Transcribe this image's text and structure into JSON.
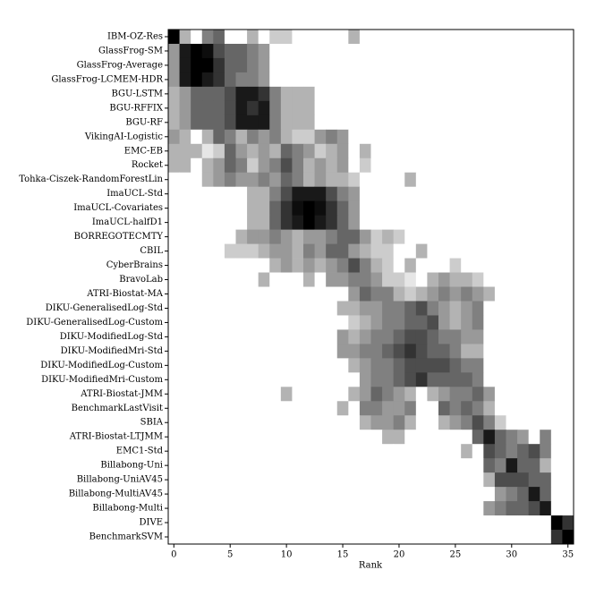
{
  "chart_data": {
    "type": "heatmap",
    "xlabel": "Rank",
    "xlim": [
      -0.5,
      35.5
    ],
    "xticks": [
      0,
      5,
      10,
      15,
      20,
      25,
      30,
      35
    ],
    "colormap": "gray_r",
    "rows": [
      "IBM-OZ-Res",
      "GlassFrog-SM",
      "GlassFrog-Average",
      "GlassFrog-LCMEM-HDR",
      "BGU-LSTM",
      "BGU-RFFIX",
      "BGU-RF",
      "VikingAI-Logistic",
      "EMC-EB",
      "Rocket",
      "Tohka-Ciszek-RandomForestLin",
      "ImaUCL-Std",
      "ImaUCL-Covariates",
      "ImaUCL-halfD1",
      "BORREGOTECMTY",
      "CBIL",
      "CyberBrains",
      "BravoLab",
      "ATRI-Biostat-MA",
      "DIKU-GeneralisedLog-Std",
      "DIKU-GeneralisedLog-Custom",
      "DIKU-ModifiedLog-Std",
      "DIKU-ModifiedMri-Std",
      "DIKU-ModifiedLog-Custom",
      "DIKU-ModifiedMri-Custom",
      "ATRI-Biostat-JMM",
      "BenchmarkLastVisit",
      "SBIA",
      "ATRI-Biostat-LTJMM",
      "EMC1-Std",
      "Billabong-Uni",
      "Billabong-UniAV45",
      "Billabong-MultiAV45",
      "Billabong-Multi",
      "DIVE",
      "BenchmarkSVM"
    ],
    "values": [
      [
        1,
        0.3,
        0,
        0.5,
        0.6,
        0,
        0,
        0.3,
        0,
        0.2,
        0.2,
        0,
        0,
        0,
        0,
        0,
        0.3,
        0,
        0,
        0,
        0,
        0,
        0,
        0,
        0,
        0,
        0,
        0,
        0,
        0,
        0,
        0,
        0,
        0,
        0,
        0
      ],
      [
        0.4,
        0.9,
        1,
        0.95,
        0.7,
        0.6,
        0.6,
        0.5,
        0.4,
        0,
        0,
        0,
        0,
        0,
        0,
        0,
        0,
        0,
        0,
        0,
        0,
        0,
        0,
        0,
        0,
        0,
        0,
        0,
        0,
        0,
        0,
        0,
        0,
        0,
        0,
        0
      ],
      [
        0.4,
        0.9,
        1,
        1,
        0.8,
        0.6,
        0.6,
        0.5,
        0.4,
        0,
        0,
        0,
        0,
        0,
        0,
        0,
        0,
        0,
        0,
        0,
        0,
        0,
        0,
        0,
        0,
        0,
        0,
        0,
        0,
        0,
        0,
        0,
        0,
        0,
        0,
        0
      ],
      [
        0.4,
        0.9,
        1,
        0.9,
        0.8,
        0.6,
        0.5,
        0.5,
        0.4,
        0,
        0,
        0,
        0,
        0,
        0,
        0,
        0,
        0,
        0,
        0,
        0,
        0,
        0,
        0,
        0,
        0,
        0,
        0,
        0,
        0,
        0,
        0,
        0,
        0,
        0,
        0
      ],
      [
        0.3,
        0.4,
        0.6,
        0.6,
        0.6,
        0.7,
        0.9,
        0.9,
        0.8,
        0.5,
        0.3,
        0.3,
        0.3,
        0,
        0,
        0,
        0,
        0,
        0,
        0,
        0,
        0,
        0,
        0,
        0,
        0,
        0,
        0,
        0,
        0,
        0,
        0,
        0,
        0,
        0,
        0
      ],
      [
        0.3,
        0.4,
        0.6,
        0.6,
        0.6,
        0.7,
        0.9,
        0.8,
        0.9,
        0.5,
        0.3,
        0.3,
        0.3,
        0,
        0,
        0,
        0,
        0,
        0,
        0,
        0,
        0,
        0,
        0,
        0,
        0,
        0,
        0,
        0,
        0,
        0,
        0,
        0,
        0,
        0,
        0
      ],
      [
        0.3,
        0.4,
        0.6,
        0.6,
        0.6,
        0.7,
        0.9,
        0.9,
        0.9,
        0.5,
        0.3,
        0.3,
        0.3,
        0,
        0,
        0,
        0,
        0,
        0,
        0,
        0,
        0,
        0,
        0,
        0,
        0,
        0,
        0,
        0,
        0,
        0,
        0,
        0,
        0,
        0,
        0
      ],
      [
        0.4,
        0.3,
        0,
        0.3,
        0.6,
        0.5,
        0.3,
        0.5,
        0.4,
        0.5,
        0.3,
        0.2,
        0.2,
        0.4,
        0.5,
        0.4,
        0,
        0,
        0,
        0,
        0,
        0,
        0,
        0,
        0,
        0,
        0,
        0,
        0,
        0,
        0,
        0,
        0,
        0,
        0,
        0
      ],
      [
        0.3,
        0.3,
        0.3,
        0.1,
        0.2,
        0.6,
        0.4,
        0.3,
        0.4,
        0.3,
        0.6,
        0.5,
        0.4,
        0.2,
        0.3,
        0.4,
        0,
        0.3,
        0,
        0,
        0,
        0,
        0,
        0,
        0,
        0,
        0,
        0,
        0,
        0,
        0,
        0,
        0,
        0,
        0,
        0
      ],
      [
        0.3,
        0.3,
        0,
        0.3,
        0.4,
        0.6,
        0.5,
        0.2,
        0.4,
        0.5,
        0.7,
        0.5,
        0.3,
        0.4,
        0.3,
        0.4,
        0,
        0.2,
        0,
        0,
        0,
        0,
        0,
        0,
        0,
        0,
        0,
        0,
        0,
        0,
        0,
        0,
        0,
        0,
        0,
        0
      ],
      [
        0,
        0,
        0,
        0.3,
        0.4,
        0.5,
        0.4,
        0.4,
        0.5,
        0.4,
        0.6,
        0.5,
        0.3,
        0.4,
        0.3,
        0.3,
        0.2,
        0,
        0,
        0,
        0,
        0.3,
        0,
        0,
        0,
        0,
        0,
        0,
        0,
        0,
        0,
        0,
        0,
        0,
        0,
        0
      ],
      [
        0,
        0,
        0,
        0,
        0,
        0,
        0,
        0.3,
        0.3,
        0.5,
        0.7,
        0.9,
        0.9,
        0.9,
        0.7,
        0.5,
        0.4,
        0,
        0,
        0,
        0,
        0,
        0,
        0,
        0,
        0,
        0,
        0,
        0,
        0,
        0,
        0,
        0,
        0,
        0,
        0
      ],
      [
        0,
        0,
        0,
        0,
        0,
        0,
        0,
        0.3,
        0.3,
        0.6,
        0.8,
        0.95,
        1,
        0.95,
        0.8,
        0.6,
        0.4,
        0,
        0,
        0,
        0,
        0,
        0,
        0,
        0,
        0,
        0,
        0,
        0,
        0,
        0,
        0,
        0,
        0,
        0,
        0
      ],
      [
        0,
        0,
        0,
        0,
        0,
        0,
        0,
        0.3,
        0.3,
        0.6,
        0.8,
        0.9,
        1,
        0.9,
        0.8,
        0.6,
        0.4,
        0,
        0,
        0,
        0,
        0,
        0,
        0,
        0,
        0,
        0,
        0,
        0,
        0,
        0,
        0,
        0,
        0,
        0,
        0
      ],
      [
        0,
        0,
        0,
        0,
        0,
        0,
        0.3,
        0.4,
        0.4,
        0.5,
        0.4,
        0.3,
        0.4,
        0.4,
        0.5,
        0.6,
        0.6,
        0.4,
        0.2,
        0.3,
        0.2,
        0,
        0,
        0,
        0,
        0,
        0,
        0,
        0,
        0,
        0,
        0,
        0,
        0,
        0,
        0
      ],
      [
        0,
        0,
        0,
        0,
        0,
        0.2,
        0.2,
        0.2,
        0.3,
        0.4,
        0.4,
        0.3,
        0.5,
        0.4,
        0.6,
        0.6,
        0.4,
        0.3,
        0.2,
        0.2,
        0,
        0,
        0.3,
        0,
        0,
        0,
        0,
        0,
        0,
        0,
        0,
        0,
        0,
        0,
        0,
        0
      ],
      [
        0,
        0,
        0,
        0,
        0,
        0,
        0,
        0,
        0,
        0.3,
        0.4,
        0.3,
        0.4,
        0.3,
        0.4,
        0.5,
        0.7,
        0.5,
        0.3,
        0.2,
        0,
        0.3,
        0,
        0,
        0,
        0.2,
        0,
        0,
        0,
        0,
        0,
        0,
        0,
        0,
        0,
        0
      ],
      [
        0,
        0,
        0,
        0,
        0,
        0,
        0,
        0,
        0.3,
        0,
        0,
        0,
        0.3,
        0,
        0.4,
        0.4,
        0.5,
        0.5,
        0.4,
        0.2,
        0.2,
        0.1,
        0,
        0.3,
        0.4,
        0.3,
        0.3,
        0.2,
        0,
        0,
        0,
        0,
        0,
        0,
        0,
        0
      ],
      [
        0,
        0,
        0,
        0,
        0,
        0,
        0,
        0,
        0,
        0,
        0,
        0,
        0,
        0,
        0,
        0,
        0.4,
        0.6,
        0.5,
        0.5,
        0.3,
        0.2,
        0.3,
        0.4,
        0.5,
        0.4,
        0.5,
        0.4,
        0.3,
        0,
        0,
        0,
        0,
        0,
        0,
        0
      ],
      [
        0,
        0,
        0,
        0,
        0,
        0,
        0,
        0,
        0,
        0,
        0,
        0,
        0,
        0,
        0,
        0.3,
        0.3,
        0.4,
        0.4,
        0.5,
        0.5,
        0.6,
        0.7,
        0.5,
        0.4,
        0.3,
        0.4,
        0.5,
        0,
        0,
        0,
        0,
        0,
        0,
        0,
        0
      ],
      [
        0,
        0,
        0,
        0,
        0,
        0,
        0,
        0,
        0,
        0,
        0,
        0,
        0,
        0,
        0,
        0,
        0.2,
        0.3,
        0.4,
        0.5,
        0.5,
        0.6,
        0.6,
        0.7,
        0.4,
        0.3,
        0.4,
        0.5,
        0,
        0,
        0,
        0,
        0,
        0,
        0,
        0
      ],
      [
        0,
        0,
        0,
        0,
        0,
        0,
        0,
        0,
        0,
        0,
        0,
        0,
        0,
        0,
        0,
        0.4,
        0.3,
        0.4,
        0.5,
        0.5,
        0.6,
        0.7,
        0.7,
        0.6,
        0.5,
        0.5,
        0.4,
        0.4,
        0,
        0,
        0,
        0,
        0,
        0,
        0,
        0
      ],
      [
        0,
        0,
        0,
        0,
        0,
        0,
        0,
        0,
        0,
        0,
        0,
        0,
        0,
        0,
        0,
        0.4,
        0.4,
        0.5,
        0.5,
        0.6,
        0.7,
        0.8,
        0.7,
        0.6,
        0.6,
        0.5,
        0.3,
        0.3,
        0,
        0,
        0,
        0,
        0,
        0,
        0,
        0
      ],
      [
        0,
        0,
        0,
        0,
        0,
        0,
        0,
        0,
        0,
        0,
        0,
        0,
        0,
        0,
        0,
        0,
        0.3,
        0.4,
        0.5,
        0.5,
        0.6,
        0.7,
        0.7,
        0.7,
        0.7,
        0.6,
        0.5,
        0.5,
        0,
        0,
        0,
        0,
        0,
        0,
        0,
        0
      ],
      [
        0,
        0,
        0,
        0,
        0,
        0,
        0,
        0,
        0,
        0,
        0,
        0,
        0,
        0,
        0,
        0,
        0,
        0.4,
        0.5,
        0.5,
        0.6,
        0.7,
        0.8,
        0.6,
        0.6,
        0.6,
        0.6,
        0.5,
        0,
        0,
        0,
        0,
        0,
        0,
        0,
        0
      ],
      [
        0,
        0,
        0,
        0,
        0,
        0,
        0,
        0,
        0,
        0,
        0.3,
        0,
        0,
        0,
        0,
        0,
        0.3,
        0.4,
        0.6,
        0.5,
        0.4,
        0.3,
        0,
        0.3,
        0.4,
        0.5,
        0.5,
        0.6,
        0.4,
        0,
        0,
        0,
        0,
        0,
        0,
        0
      ],
      [
        0,
        0,
        0,
        0,
        0,
        0,
        0,
        0,
        0,
        0,
        0,
        0,
        0,
        0,
        0,
        0.3,
        0,
        0.5,
        0.5,
        0.4,
        0.4,
        0.5,
        0,
        0,
        0.6,
        0.5,
        0.6,
        0.5,
        0.3,
        0,
        0,
        0,
        0,
        0,
        0,
        0
      ],
      [
        0,
        0,
        0,
        0,
        0,
        0,
        0,
        0,
        0,
        0,
        0,
        0,
        0,
        0,
        0,
        0,
        0,
        0.3,
        0.4,
        0.4,
        0.5,
        0.3,
        0,
        0,
        0.3,
        0.4,
        0.5,
        0.7,
        0.5,
        0.2,
        0,
        0,
        0,
        0,
        0,
        0
      ],
      [
        0,
        0,
        0,
        0,
        0,
        0,
        0,
        0,
        0,
        0,
        0,
        0,
        0,
        0,
        0,
        0,
        0,
        0,
        0,
        0.3,
        0.3,
        0,
        0,
        0,
        0,
        0,
        0,
        0.6,
        0.9,
        0.6,
        0.5,
        0.4,
        0,
        0.5,
        0,
        0
      ],
      [
        0,
        0,
        0,
        0,
        0,
        0,
        0,
        0,
        0,
        0,
        0,
        0,
        0,
        0,
        0,
        0,
        0,
        0,
        0,
        0,
        0,
        0,
        0,
        0,
        0,
        0,
        0.3,
        0,
        0.7,
        0.6,
        0.5,
        0.6,
        0.7,
        0.5,
        0,
        0
      ],
      [
        0,
        0,
        0,
        0,
        0,
        0,
        0,
        0,
        0,
        0,
        0,
        0,
        0,
        0,
        0,
        0,
        0,
        0,
        0,
        0,
        0,
        0,
        0,
        0,
        0,
        0,
        0,
        0,
        0.6,
        0.5,
        0.9,
        0.6,
        0.6,
        0.3,
        0,
        0
      ],
      [
        0,
        0,
        0,
        0,
        0,
        0,
        0,
        0,
        0,
        0,
        0,
        0,
        0,
        0,
        0,
        0,
        0,
        0,
        0,
        0,
        0,
        0,
        0,
        0,
        0,
        0,
        0,
        0,
        0.3,
        0.7,
        0.7,
        0.7,
        0.6,
        0.6,
        0,
        0
      ],
      [
        0,
        0,
        0,
        0,
        0,
        0,
        0,
        0,
        0,
        0,
        0,
        0,
        0,
        0,
        0,
        0,
        0,
        0,
        0,
        0,
        0,
        0,
        0,
        0,
        0,
        0,
        0,
        0,
        0,
        0.4,
        0.5,
        0.6,
        0.9,
        0.6,
        0,
        0
      ],
      [
        0,
        0,
        0,
        0,
        0,
        0,
        0,
        0,
        0,
        0,
        0,
        0,
        0,
        0,
        0,
        0,
        0,
        0,
        0,
        0,
        0,
        0,
        0,
        0,
        0,
        0,
        0,
        0,
        0.4,
        0.5,
        0.6,
        0.6,
        0.7,
        0.9,
        0,
        0
      ],
      [
        0,
        0,
        0,
        0,
        0,
        0,
        0,
        0,
        0,
        0,
        0,
        0,
        0,
        0,
        0,
        0,
        0,
        0,
        0,
        0,
        0,
        0,
        0,
        0,
        0,
        0,
        0,
        0,
        0,
        0,
        0,
        0,
        0,
        0,
        1,
        0.8
      ],
      [
        0,
        0,
        0,
        0,
        0,
        0,
        0,
        0,
        0,
        0,
        0,
        0,
        0,
        0,
        0,
        0,
        0,
        0,
        0,
        0,
        0,
        0,
        0,
        0,
        0,
        0,
        0,
        0,
        0,
        0,
        0,
        0,
        0,
        0,
        0.8,
        1
      ]
    ]
  }
}
